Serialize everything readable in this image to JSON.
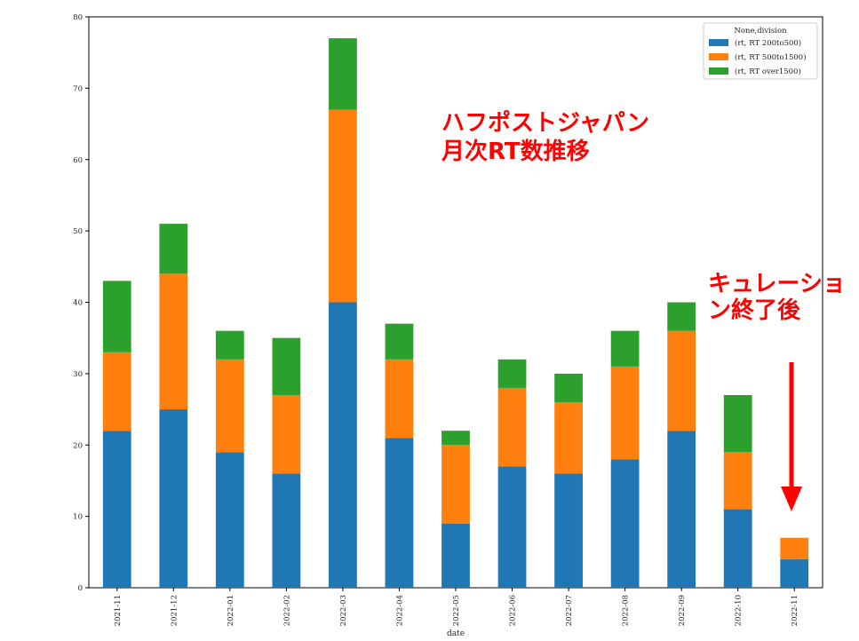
{
  "chart_data": {
    "type": "bar",
    "stacked": true,
    "categories": [
      "2021-11",
      "2021-12",
      "2022-01",
      "2022-02",
      "2022-03",
      "2022-04",
      "2022-05",
      "2022-06",
      "2022-07",
      "2022-08",
      "2022-09",
      "2022-10",
      "2022-11"
    ],
    "series": [
      {
        "name": "(rt, RT 200to500)",
        "color": "#1f77b4",
        "values": [
          22,
          25,
          19,
          16,
          40,
          21,
          9,
          17,
          16,
          18,
          22,
          11,
          4
        ]
      },
      {
        "name": "(rt, RT 500to1500)",
        "color": "#ff7f0e",
        "values": [
          11,
          19,
          13,
          11,
          27,
          11,
          11,
          11,
          10,
          13,
          14,
          8,
          3
        ]
      },
      {
        "name": "(rt, RT over1500)",
        "color": "#2ca02c",
        "values": [
          10,
          7,
          4,
          8,
          10,
          5,
          2,
          4,
          4,
          5,
          4,
          8,
          0
        ]
      }
    ],
    "yticks": [
      0,
      10,
      20,
      30,
      40,
      50,
      60,
      70,
      80
    ],
    "ylim": [
      0,
      80
    ],
    "xlabel": "date",
    "ylabel": "",
    "legend_title": "None,division",
    "legend_position": "upper right",
    "grid": false
  },
  "annotations": {
    "title_line1": "ハフポストジャパン",
    "title_line2": "月次RT数推移",
    "note_line1": "キュレーショ",
    "note_line2": "ン終了後",
    "annotation_color": "#ff0000"
  }
}
